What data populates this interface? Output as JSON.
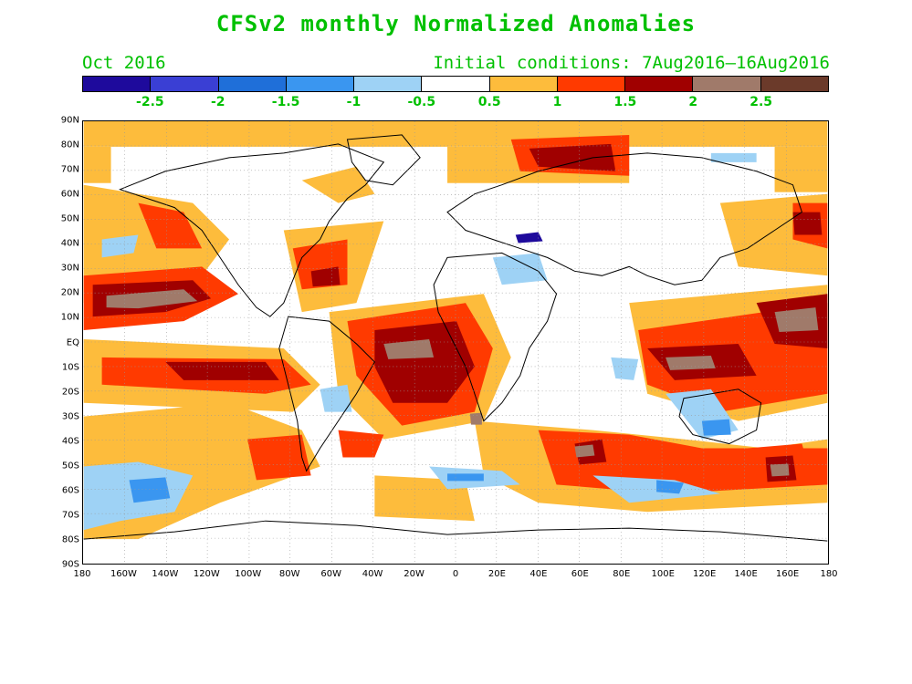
{
  "title": "CFSv2 monthly Normalized Anomalies",
  "valid_month": "Oct 2016",
  "initial_conditions": "Initial conditions: 7Aug2016–16Aug2016",
  "colorbar": {
    "colors": [
      "#1e0a9c",
      "#3a3fd4",
      "#1f6fd9",
      "#3a96f0",
      "#9ed2f5",
      "#ffffff",
      "#fdbc3c",
      "#ff3a00",
      "#a00000",
      "#a07a6a",
      "#6b3a2a"
    ],
    "labels": [
      "-2.5",
      "-2",
      "-1.5",
      "-1",
      "-0.5",
      "0.5",
      "1",
      "1.5",
      "2",
      "2.5"
    ]
  },
  "lat_labels": [
    "90N",
    "80N",
    "70N",
    "60N",
    "50N",
    "40N",
    "30N",
    "20N",
    "10N",
    "EQ",
    "10S",
    "20S",
    "30S",
    "40S",
    "50S",
    "60S",
    "70S",
    "80S",
    "90S"
  ],
  "lon_labels": [
    "180",
    "160W",
    "140W",
    "120W",
    "100W",
    "80W",
    "60W",
    "40W",
    "20W",
    "0",
    "20E",
    "40E",
    "60E",
    "80E",
    "100E",
    "120E",
    "140E",
    "160E",
    "180"
  ],
  "anomaly_colors": {
    "light_blue": "#9ed2f5",
    "blue": "#3a96f0",
    "dark_blue": "#1f6fd9",
    "orange": "#fdbc3c",
    "red": "#ff3a00",
    "dark_red": "#a00000",
    "brown": "#a07a6a"
  }
}
